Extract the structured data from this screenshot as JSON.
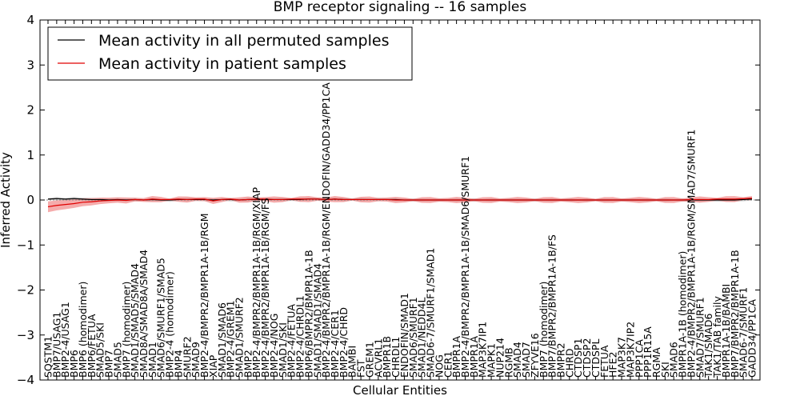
{
  "chart_data": {
    "type": "line",
    "title": "BMP receptor signaling -- 16 samples",
    "xlabel": "Cellular Entities",
    "ylabel": "Inferred Activity",
    "ylim": [
      -4,
      4
    ],
    "yticks": [
      "4",
      "3",
      "2",
      "1",
      "0",
      "−1",
      "−2",
      "−3",
      "−4"
    ],
    "grid": false,
    "legend_position": "top-left",
    "colors": {
      "permuted": "#000000",
      "patient": "#e00000",
      "patient_band": "#f08080",
      "permuted_band": "#b0b0b0",
      "zero_line": "#888888"
    },
    "categories": [
      "SQSTM1",
      "BMP7/USAG1",
      "BMP2-4/USAG1",
      "BMP6",
      "BMP6 (homodimer)",
      "BMP6/FETUA",
      "SMAD5/SKI",
      "BMP7",
      "SMAD5",
      "BMP7 (homodimer)",
      "SMAD1/SMAD5/SMAD4",
      "SMAD8A/SMAD8A/SMAD4",
      "SMAD1",
      "SMAD6/SMURF1/SMAD5",
      "BMP2-4 (homodimer)",
      "BMP4",
      "SMURF2",
      "SMAD9",
      "BMP2-4/BMPR2/BMPR1A-1B/RGM",
      "XIAP",
      "SMAD1/SMAD6",
      "BMP2-4/GREM1",
      "SMAD1/SMURF2",
      "BMP2",
      "BMP2-4/BMPR2/BMPR1A-1B/RGM/XIAP",
      "BMP2-4/BMPR2/BMPR1A-1B/RGM/FS",
      "BMP2-4/NOG",
      "SMAD1/SKI",
      "BMP2-4/FETUA",
      "BMP2-4/CHRDL1",
      "BMP6/BMPR2/BMPR1A-1B",
      "SMAD1/SMAD1/SMAD4",
      "BMP2-4/BMPR2/BMPR1A-1B/RGM/ENDOFIN/GADD34/PP1CA",
      "BMP2-4/CER1",
      "BMP2-4/CHRD",
      "BAMBI",
      "FST",
      "GREM1",
      "ACVRL1",
      "BMPR1B",
      "CHRDL1",
      "ENDOFIN/SMAD1",
      "SMAD6/SMURF1",
      "SMAD1/NEDD4L",
      "SMAD6-7/SMURF1/SMAD1",
      "NOG",
      "CER1",
      "BMPR1A",
      "BMP2-4/BMPR2/BMPR1A-1B/SMAD6/SMURF1",
      "BMPR1A",
      "MAP3K7IP1",
      "MAPK1",
      "NUP214",
      "RGMB",
      "SMAD4",
      "SMAD7",
      "ZFYVE16",
      "BMP7 (homodimer)",
      "BMP7/BMPR2/BMPR1A-1B/FS",
      "BMPR2",
      "CHRD",
      "CTDSP1",
      "CTDSP2",
      "CTDSPL",
      "FETUA",
      "HFE2",
      "MAP3K7",
      "MAP3K7IP2",
      "PPP1CA",
      "PPP1R15A",
      "RGMA",
      "SKI",
      "SMAD6",
      "BMPR1A-1B (homodimer)",
      "BMP2-4/BMPR2/BMPR1A-1B/RGM/SMAD7/SMURF1",
      "SMAD7/SMURF1",
      "TAK1/SMAD6",
      "TAK1/TAB family",
      "BMPR1A-1B/BAMBI",
      "BMP7/BMPR2/BMPR1A-1B",
      "SMAD6-7/SMURF1",
      "GADD34/PP1CA"
    ],
    "series": [
      {
        "name": "Mean activity in all permuted samples",
        "values": [
          0.02,
          0.03,
          0.02,
          0.03,
          0.02,
          0.01,
          0.01,
          0.0,
          0.01,
          0.0,
          0.01,
          0.0,
          0.01,
          0.0,
          0.0,
          0.01,
          0.01,
          0.01,
          0.01,
          0.0,
          0.01,
          0.01,
          0.0,
          0.01,
          0.01,
          0.01,
          0.01,
          0.01,
          0.01,
          0.01,
          0.02,
          0.02,
          0.01,
          0.02,
          0.01,
          0.01,
          0.01,
          0.01,
          0.01,
          0.01,
          0.01,
          0.0,
          0.0,
          0.0,
          0.0,
          0.0,
          0.0,
          0.0,
          0.0,
          0.0,
          0.0,
          0.0,
          0.0,
          0.0,
          0.0,
          0.0,
          0.0,
          0.0,
          0.0,
          0.0,
          0.0,
          0.0,
          0.0,
          0.0,
          0.0,
          0.0,
          0.0,
          0.0,
          0.0,
          0.0,
          0.0,
          0.0,
          0.0,
          0.0,
          0.0,
          0.0,
          0.0,
          0.0,
          0.0,
          0.0,
          0.01,
          0.02
        ]
      },
      {
        "name": "Mean activity in patient samples",
        "values": [
          -0.15,
          -0.12,
          -0.1,
          -0.08,
          -0.05,
          -0.04,
          -0.02,
          -0.01,
          0.0,
          -0.01,
          0.01,
          0.0,
          0.02,
          0.01,
          0.01,
          0.02,
          0.01,
          0.02,
          0.02,
          -0.02,
          0.01,
          0.02,
          0.0,
          0.01,
          0.02,
          0.02,
          0.01,
          0.01,
          0.02,
          0.02,
          0.02,
          0.02,
          0.01,
          0.02,
          0.01,
          0.01,
          0.01,
          0.01,
          0.01,
          0.01,
          0.0,
          0.0,
          0.0,
          0.0,
          0.0,
          0.0,
          0.0,
          0.0,
          0.0,
          0.0,
          0.0,
          0.0,
          0.0,
          0.0,
          0.0,
          0.0,
          0.0,
          0.0,
          0.0,
          0.0,
          0.0,
          0.0,
          0.0,
          0.0,
          0.0,
          0.0,
          0.0,
          0.0,
          0.0,
          0.0,
          0.0,
          0.0,
          0.0,
          0.0,
          0.01,
          0.01,
          0.01,
          0.02,
          0.02,
          0.02,
          0.03,
          0.04
        ]
      }
    ]
  },
  "legend": {
    "permuted": "Mean activity in all permuted samples",
    "patient": "Mean activity in patient samples"
  }
}
